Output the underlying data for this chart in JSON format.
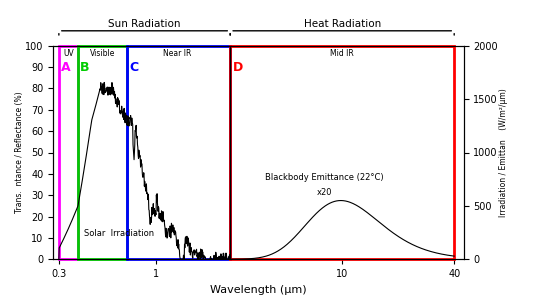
{
  "xlabel": "Wavelength (μm)",
  "ylabel_left": "Trans.  ntance / Reflectance (%)",
  "ylabel_right": "Irradiation / Emittan    (W/m²/μm)",
  "xlim": [
    0.28,
    45
  ],
  "ylim_left": [
    0,
    100
  ],
  "ylim_right": [
    0,
    2000
  ],
  "regions": {
    "UV": {
      "xmin": 0.3,
      "xmax": 0.38,
      "color": "#FF00FF",
      "letter": "A",
      "letter_color": "#FF00FF",
      "label": "UV"
    },
    "Visible": {
      "xmin": 0.38,
      "xmax": 0.7,
      "color": "#00CC00",
      "letter": "B",
      "letter_color": "#00CC00",
      "label": "Visible"
    },
    "NearIR": {
      "xmin": 0.7,
      "xmax": 2.5,
      "color": "#0000FF",
      "letter": "C",
      "letter_color": "#0000FF",
      "label": "Near IR"
    },
    "MidIR": {
      "xmin": 2.5,
      "xmax": 40.0,
      "color": "#FF0000",
      "letter": "D",
      "letter_color": "#FF0000",
      "label": "Mid IR"
    }
  },
  "sun_bracket": {
    "xmin": 0.3,
    "xmax": 2.5,
    "label": "Sun Radiation"
  },
  "heat_bracket": {
    "xmin": 2.5,
    "xmax": 40.0,
    "label": "Heat Radiation"
  },
  "solar_label": "Solar  Irradiation",
  "bb_label1": "Blackbody Emittance (22°C)",
  "bb_label2": "x20",
  "xticks": [
    0.3,
    1,
    10,
    40
  ],
  "xtick_labels": [
    "0.3",
    "1",
    "10",
    "40"
  ],
  "yticks_left": [
    0,
    10,
    20,
    30,
    40,
    50,
    60,
    70,
    80,
    90,
    100
  ],
  "yticks_right": [
    0,
    500,
    1000,
    1500,
    2000
  ],
  "lw_border": 2.0,
  "background_color": "#FFFFFF"
}
